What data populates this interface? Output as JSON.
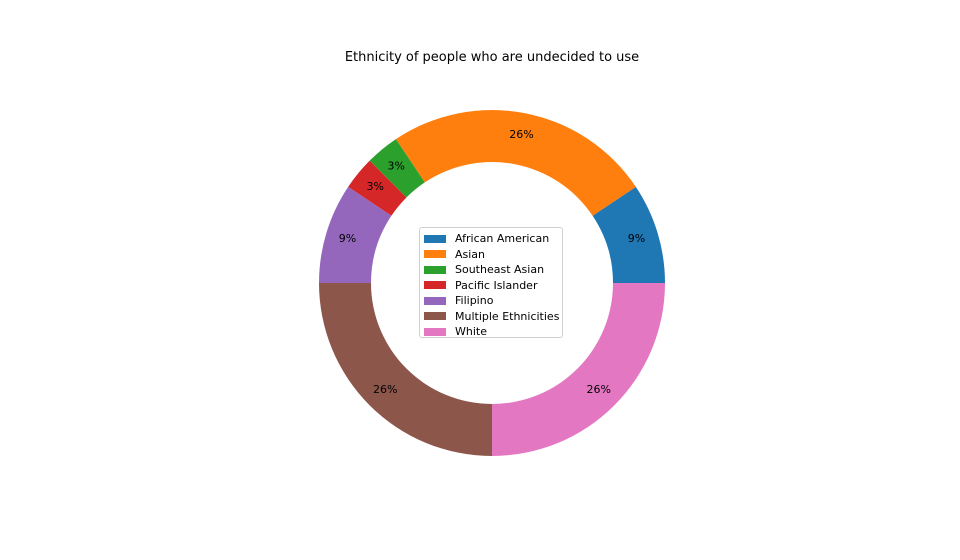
{
  "chart_data": {
    "type": "pie",
    "style": "donut",
    "title": "Ethnicity of people who are undecided to use",
    "categories": [
      "African American",
      "Asian",
      "Southeast Asian",
      "Pacific Islander",
      "Filipino",
      "Multiple Ethnicities",
      "White"
    ],
    "values": [
      3,
      8,
      1,
      1,
      3,
      8,
      8
    ],
    "labels": [
      "9%",
      "26%",
      "3%",
      "3%",
      "9%",
      "26%",
      "26%"
    ],
    "colors": [
      "#1f77b4",
      "#ff7f0e",
      "#2ca02c",
      "#d62728",
      "#9467bd",
      "#8c564b",
      "#e377c2"
    ],
    "legend": {
      "placement": "center",
      "entries": [
        "African American",
        "Asian",
        "Southeast Asian",
        "Pacific Islander",
        "Filipino",
        "Multiple Ethnicities",
        "White"
      ]
    }
  }
}
